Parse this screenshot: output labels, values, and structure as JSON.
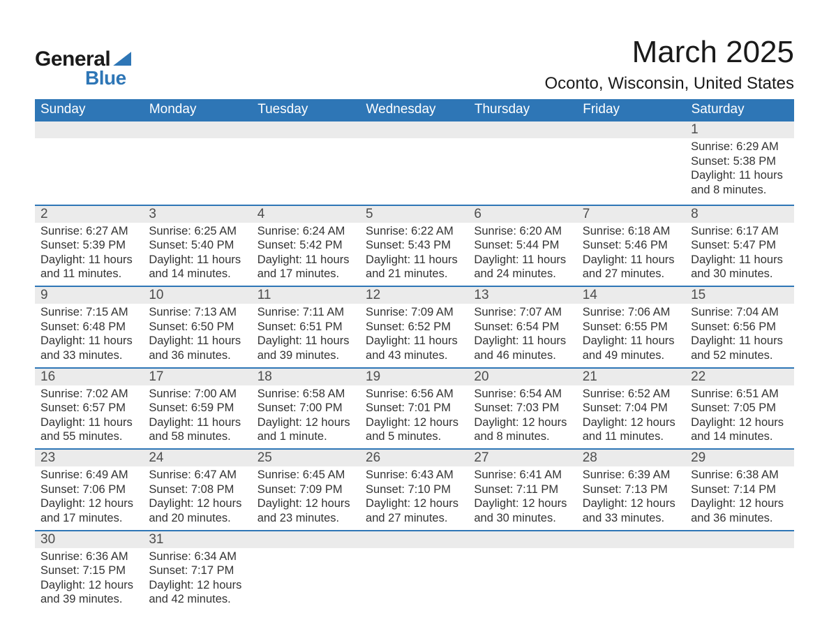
{
  "logo": {
    "part1": "General",
    "part2": "Blue"
  },
  "title": "March 2025",
  "location": "Oconto, Wisconsin, United States",
  "day_headers": [
    "Sunday",
    "Monday",
    "Tuesday",
    "Wednesday",
    "Thursday",
    "Friday",
    "Saturday"
  ],
  "colors": {
    "header_bg": "#2e76b6",
    "header_text": "#ffffff",
    "daynum_bg": "#ebebeb",
    "row_divider": "#2e76b6",
    "text": "#333333",
    "logo_accent": "#2e76b6"
  },
  "weeks": [
    [
      null,
      null,
      null,
      null,
      null,
      null,
      {
        "n": "1",
        "sunrise": "Sunrise: 6:29 AM",
        "sunset": "Sunset: 5:38 PM",
        "daylight": "Daylight: 11 hours and 8 minutes."
      }
    ],
    [
      {
        "n": "2",
        "sunrise": "Sunrise: 6:27 AM",
        "sunset": "Sunset: 5:39 PM",
        "daylight": "Daylight: 11 hours and 11 minutes."
      },
      {
        "n": "3",
        "sunrise": "Sunrise: 6:25 AM",
        "sunset": "Sunset: 5:40 PM",
        "daylight": "Daylight: 11 hours and 14 minutes."
      },
      {
        "n": "4",
        "sunrise": "Sunrise: 6:24 AM",
        "sunset": "Sunset: 5:42 PM",
        "daylight": "Daylight: 11 hours and 17 minutes."
      },
      {
        "n": "5",
        "sunrise": "Sunrise: 6:22 AM",
        "sunset": "Sunset: 5:43 PM",
        "daylight": "Daylight: 11 hours and 21 minutes."
      },
      {
        "n": "6",
        "sunrise": "Sunrise: 6:20 AM",
        "sunset": "Sunset: 5:44 PM",
        "daylight": "Daylight: 11 hours and 24 minutes."
      },
      {
        "n": "7",
        "sunrise": "Sunrise: 6:18 AM",
        "sunset": "Sunset: 5:46 PM",
        "daylight": "Daylight: 11 hours and 27 minutes."
      },
      {
        "n": "8",
        "sunrise": "Sunrise: 6:17 AM",
        "sunset": "Sunset: 5:47 PM",
        "daylight": "Daylight: 11 hours and 30 minutes."
      }
    ],
    [
      {
        "n": "9",
        "sunrise": "Sunrise: 7:15 AM",
        "sunset": "Sunset: 6:48 PM",
        "daylight": "Daylight: 11 hours and 33 minutes."
      },
      {
        "n": "10",
        "sunrise": "Sunrise: 7:13 AM",
        "sunset": "Sunset: 6:50 PM",
        "daylight": "Daylight: 11 hours and 36 minutes."
      },
      {
        "n": "11",
        "sunrise": "Sunrise: 7:11 AM",
        "sunset": "Sunset: 6:51 PM",
        "daylight": "Daylight: 11 hours and 39 minutes."
      },
      {
        "n": "12",
        "sunrise": "Sunrise: 7:09 AM",
        "sunset": "Sunset: 6:52 PM",
        "daylight": "Daylight: 11 hours and 43 minutes."
      },
      {
        "n": "13",
        "sunrise": "Sunrise: 7:07 AM",
        "sunset": "Sunset: 6:54 PM",
        "daylight": "Daylight: 11 hours and 46 minutes."
      },
      {
        "n": "14",
        "sunrise": "Sunrise: 7:06 AM",
        "sunset": "Sunset: 6:55 PM",
        "daylight": "Daylight: 11 hours and 49 minutes."
      },
      {
        "n": "15",
        "sunrise": "Sunrise: 7:04 AM",
        "sunset": "Sunset: 6:56 PM",
        "daylight": "Daylight: 11 hours and 52 minutes."
      }
    ],
    [
      {
        "n": "16",
        "sunrise": "Sunrise: 7:02 AM",
        "sunset": "Sunset: 6:57 PM",
        "daylight": "Daylight: 11 hours and 55 minutes."
      },
      {
        "n": "17",
        "sunrise": "Sunrise: 7:00 AM",
        "sunset": "Sunset: 6:59 PM",
        "daylight": "Daylight: 11 hours and 58 minutes."
      },
      {
        "n": "18",
        "sunrise": "Sunrise: 6:58 AM",
        "sunset": "Sunset: 7:00 PM",
        "daylight": "Daylight: 12 hours and 1 minute."
      },
      {
        "n": "19",
        "sunrise": "Sunrise: 6:56 AM",
        "sunset": "Sunset: 7:01 PM",
        "daylight": "Daylight: 12 hours and 5 minutes."
      },
      {
        "n": "20",
        "sunrise": "Sunrise: 6:54 AM",
        "sunset": "Sunset: 7:03 PM",
        "daylight": "Daylight: 12 hours and 8 minutes."
      },
      {
        "n": "21",
        "sunrise": "Sunrise: 6:52 AM",
        "sunset": "Sunset: 7:04 PM",
        "daylight": "Daylight: 12 hours and 11 minutes."
      },
      {
        "n": "22",
        "sunrise": "Sunrise: 6:51 AM",
        "sunset": "Sunset: 7:05 PM",
        "daylight": "Daylight: 12 hours and 14 minutes."
      }
    ],
    [
      {
        "n": "23",
        "sunrise": "Sunrise: 6:49 AM",
        "sunset": "Sunset: 7:06 PM",
        "daylight": "Daylight: 12 hours and 17 minutes."
      },
      {
        "n": "24",
        "sunrise": "Sunrise: 6:47 AM",
        "sunset": "Sunset: 7:08 PM",
        "daylight": "Daylight: 12 hours and 20 minutes."
      },
      {
        "n": "25",
        "sunrise": "Sunrise: 6:45 AM",
        "sunset": "Sunset: 7:09 PM",
        "daylight": "Daylight: 12 hours and 23 minutes."
      },
      {
        "n": "26",
        "sunrise": "Sunrise: 6:43 AM",
        "sunset": "Sunset: 7:10 PM",
        "daylight": "Daylight: 12 hours and 27 minutes."
      },
      {
        "n": "27",
        "sunrise": "Sunrise: 6:41 AM",
        "sunset": "Sunset: 7:11 PM",
        "daylight": "Daylight: 12 hours and 30 minutes."
      },
      {
        "n": "28",
        "sunrise": "Sunrise: 6:39 AM",
        "sunset": "Sunset: 7:13 PM",
        "daylight": "Daylight: 12 hours and 33 minutes."
      },
      {
        "n": "29",
        "sunrise": "Sunrise: 6:38 AM",
        "sunset": "Sunset: 7:14 PM",
        "daylight": "Daylight: 12 hours and 36 minutes."
      }
    ],
    [
      {
        "n": "30",
        "sunrise": "Sunrise: 6:36 AM",
        "sunset": "Sunset: 7:15 PM",
        "daylight": "Daylight: 12 hours and 39 minutes."
      },
      {
        "n": "31",
        "sunrise": "Sunrise: 6:34 AM",
        "sunset": "Sunset: 7:17 PM",
        "daylight": "Daylight: 12 hours and 42 minutes."
      },
      null,
      null,
      null,
      null,
      null
    ]
  ]
}
